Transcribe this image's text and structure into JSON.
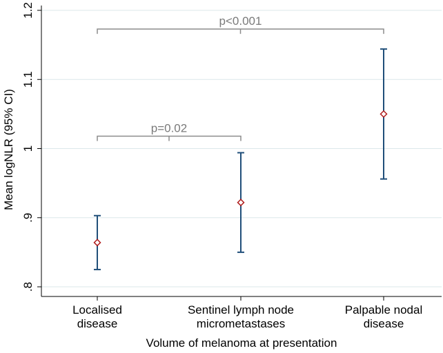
{
  "chart_data": {
    "type": "scatter",
    "ylabel": "Mean logNLR (95% CI)",
    "xlabel": "Volume of melanoma at presentation",
    "ylim": [
      0.8,
      1.2
    ],
    "yticks": [
      0.8,
      0.9,
      1.0,
      1.1,
      1.2
    ],
    "ytick_labels": [
      ".8",
      ".9",
      "1",
      "1.1",
      "1.2"
    ],
    "grid": true,
    "categories": [
      [
        "Localised",
        "disease"
      ],
      [
        "Sentinel lymph node",
        "micrometastases"
      ],
      [
        "Palpable nodal",
        "disease"
      ]
    ],
    "series": [
      {
        "name": "Mean logNLR",
        "mean": [
          0.864,
          0.922,
          1.05
        ],
        "ci_lower": [
          0.825,
          0.85,
          0.956
        ],
        "ci_upper": [
          0.903,
          0.994,
          1.144
        ]
      }
    ],
    "annotations": [
      {
        "text": "p=0.02",
        "from_category": 0,
        "to_category": 1,
        "at_value": 1.018
      },
      {
        "text": "p<0.001",
        "from_category": 0,
        "to_category": 2,
        "at_value": 1.173
      }
    ]
  }
}
